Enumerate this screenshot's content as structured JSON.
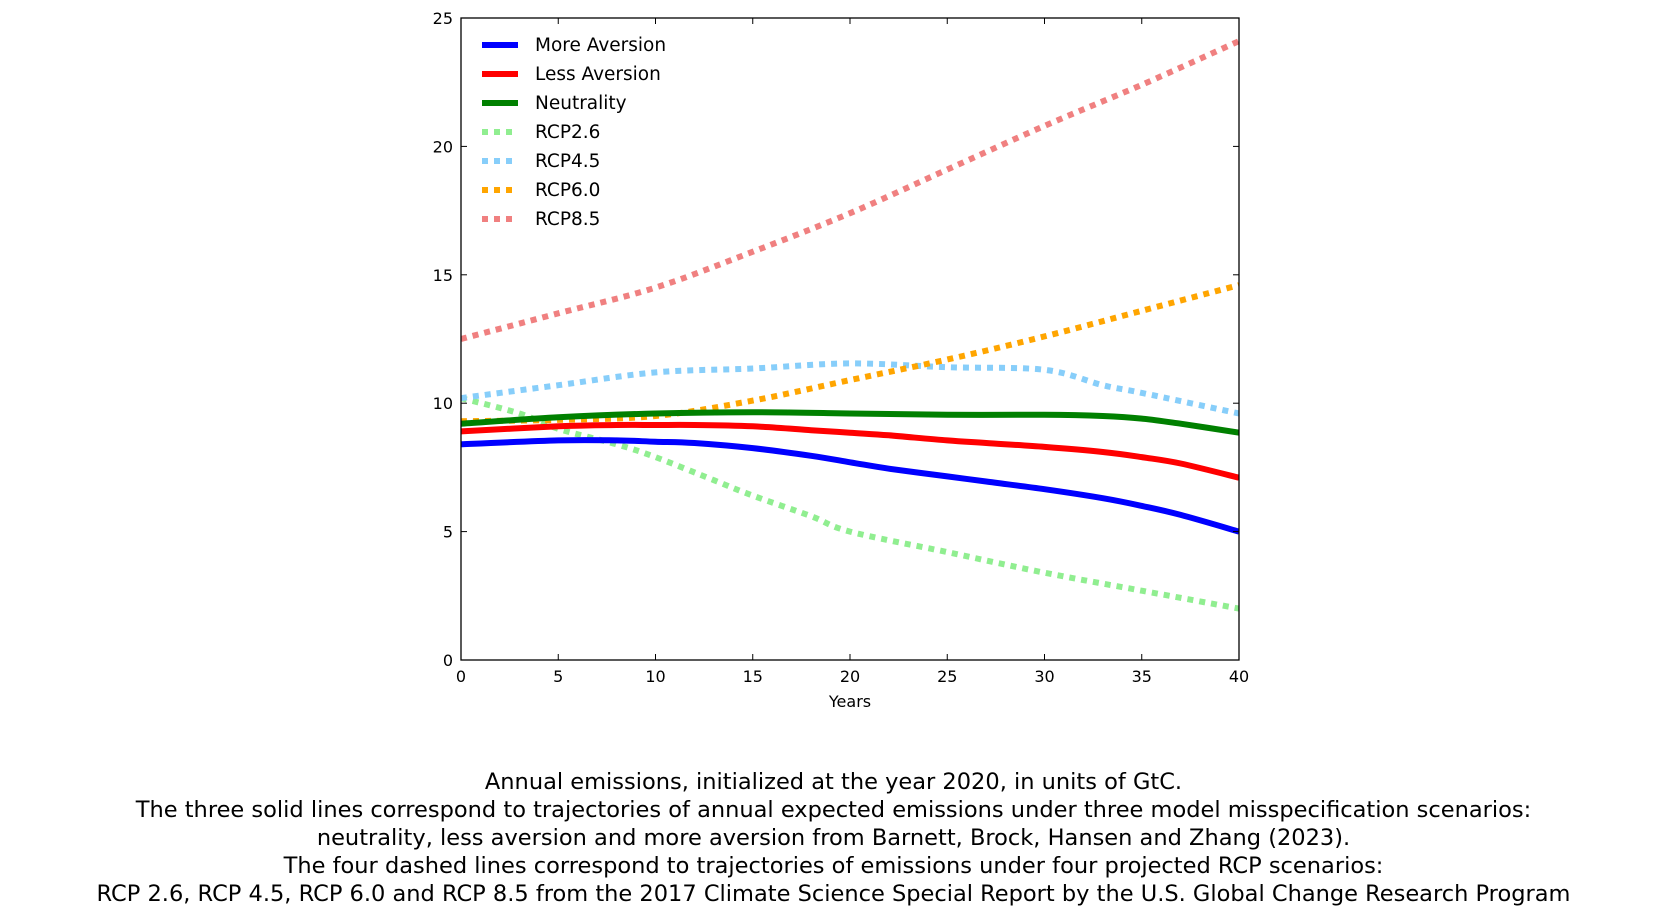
{
  "chart_data": {
    "type": "line",
    "xlabel": "Years",
    "ylabel": "",
    "xlim": [
      0,
      40
    ],
    "ylim": [
      0,
      25
    ],
    "xticks": [
      0,
      5,
      10,
      15,
      20,
      25,
      30,
      35,
      40
    ],
    "yticks": [
      0,
      5,
      10,
      15,
      20,
      25
    ],
    "grid": false,
    "legend_position": "top-left",
    "series": [
      {
        "name": "More Aversion",
        "color": "#0000ff",
        "style": "solid",
        "x": [
          0,
          5,
          8,
          10,
          12,
          15,
          18,
          20,
          22,
          25,
          27,
          30,
          33,
          35,
          37,
          40
        ],
        "y": [
          8.4,
          8.55,
          8.55,
          8.5,
          8.45,
          8.25,
          7.95,
          7.7,
          7.45,
          7.15,
          6.95,
          6.65,
          6.3,
          6.0,
          5.65,
          5.0
        ]
      },
      {
        "name": "Less Aversion",
        "color": "#ff0000",
        "style": "solid",
        "x": [
          0,
          5,
          8,
          10,
          12,
          15,
          18,
          20,
          22,
          25,
          27,
          30,
          33,
          35,
          37,
          40
        ],
        "y": [
          8.9,
          9.1,
          9.15,
          9.15,
          9.15,
          9.1,
          8.95,
          8.85,
          8.75,
          8.55,
          8.45,
          8.3,
          8.1,
          7.9,
          7.65,
          7.1
        ]
      },
      {
        "name": "Neutrality",
        "color": "#008000",
        "style": "solid",
        "x": [
          0,
          5,
          10,
          15,
          20,
          25,
          30,
          33,
          35,
          37,
          40
        ],
        "y": [
          9.2,
          9.45,
          9.6,
          9.65,
          9.6,
          9.55,
          9.55,
          9.5,
          9.4,
          9.2,
          8.85
        ]
      },
      {
        "name": "RCP2.6",
        "color": "#90ee90",
        "style": "dashed",
        "x": [
          0,
          3,
          5,
          8,
          10,
          13,
          15,
          18,
          20,
          25,
          30,
          35,
          40
        ],
        "y": [
          10.2,
          9.6,
          9.0,
          8.4,
          7.9,
          7.0,
          6.4,
          5.6,
          5.0,
          4.2,
          3.4,
          2.7,
          2.0
        ]
      },
      {
        "name": "RCP4.5",
        "color": "#87cefa",
        "style": "dashed",
        "x": [
          0,
          5,
          10,
          15,
          20,
          25,
          30,
          33,
          35,
          40
        ],
        "y": [
          10.2,
          10.7,
          11.2,
          11.35,
          11.55,
          11.4,
          11.3,
          10.7,
          10.4,
          9.6
        ]
      },
      {
        "name": "RCP6.0",
        "color": "#ffa500",
        "style": "dashed",
        "x": [
          0,
          5,
          10,
          15,
          20,
          25,
          30,
          35,
          40
        ],
        "y": [
          9.3,
          9.35,
          9.5,
          10.1,
          10.9,
          11.7,
          12.6,
          13.6,
          14.6
        ]
      },
      {
        "name": "RCP8.5",
        "color": "#f08080",
        "style": "dashed",
        "x": [
          0,
          5,
          10,
          15,
          20,
          25,
          30,
          35,
          40
        ],
        "y": [
          12.5,
          13.5,
          14.5,
          15.9,
          17.4,
          19.1,
          20.8,
          22.4,
          24.1
        ]
      }
    ]
  },
  "caption": {
    "line1": "Annual emissions, initialized at the year 2020, in units of GtC.",
    "line2": "The three solid lines correspond to trajectories of annual expected emissions under three model misspecification scenarios:",
    "line3": "neutrality, less aversion and more aversion from Barnett, Brock, Hansen and Zhang (2023).",
    "line4": "The four dashed lines correspond to trajectories of emissions under four projected RCP scenarios:",
    "line5": "RCP 2.6, RCP 4.5, RCP 6.0 and RCP 8.5 from the 2017 Climate Science Special Report by the U.S. Global Change Research Program"
  }
}
